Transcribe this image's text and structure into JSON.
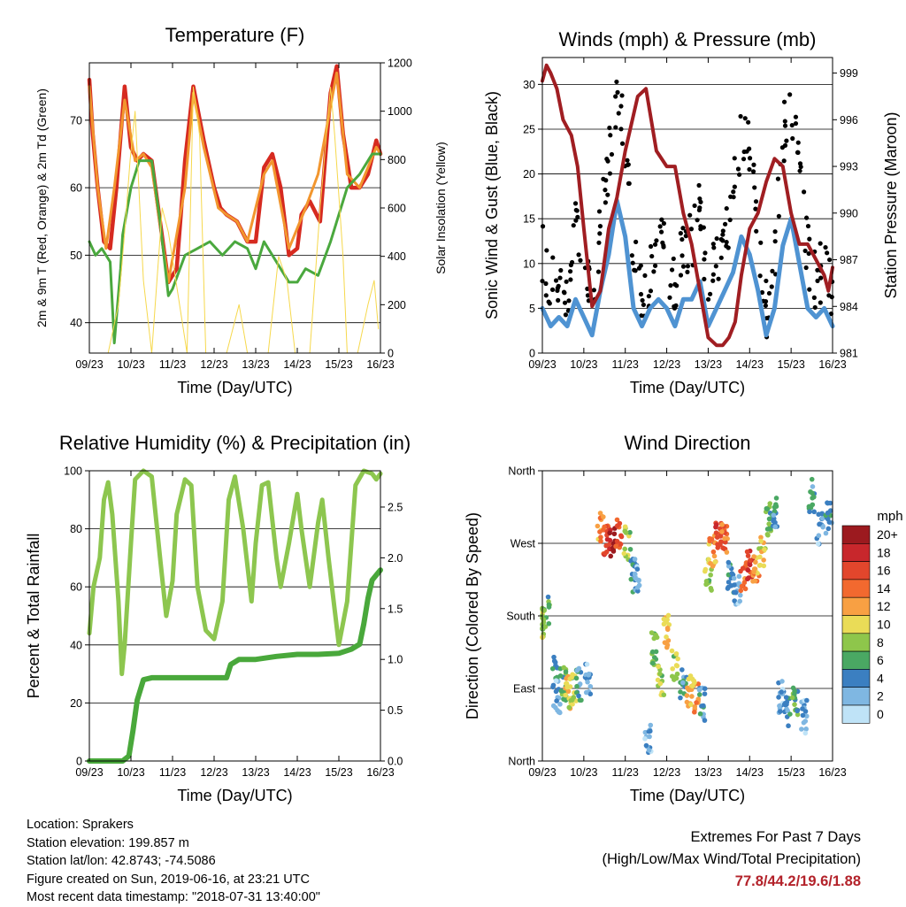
{
  "info": {
    "location": "Location: Sprakers",
    "elevation": "Station elevation: 199.857 m",
    "latlon": "Station lat/lon: 42.8743; -74.5086",
    "created": "Figure created on Sun, 2019-06-16, at 23:21 UTC",
    "recent": "Most recent data timestamp: \"2018-07-31 13:40:00\""
  },
  "extremes": {
    "title": "Extremes For Past 7 Days",
    "subtitle": "(High/Low/Max Wind/Total Precipitation)",
    "values": "77.8/44.2/19.6/1.88",
    "color": "#b3222a"
  },
  "chart_data": [
    {
      "type": "line",
      "title": "Temperature (F)",
      "xlabel": "Time (Day/UTC)",
      "ylabel": "2m & 9m T (Red, Orange) & 2m Td (Green)",
      "y2label": "Solar Insolation (Yellow)",
      "x_ticks": [
        "09/23",
        "10/23",
        "11/23",
        "12/23",
        "13/23",
        "14/23",
        "15/23",
        "16/23"
      ],
      "ylim": [
        35.5,
        78.5
      ],
      "y_ticks": [
        "40",
        "50",
        "60",
        "70"
      ],
      "y_tick_values": [
        40,
        50,
        60,
        70
      ],
      "y2lim": [
        0,
        1200
      ],
      "y2_ticks": [
        "0",
        "200",
        "400",
        "600",
        "800",
        "1000",
        "1200"
      ],
      "y2_tick_values": [
        0,
        200,
        400,
        600,
        800,
        1000,
        1200
      ],
      "grid": "horizontal at left-axis ticks",
      "series": [
        {
          "color": "#d62a20",
          "axis": "left",
          "x": [
            0,
            0.08,
            0.2,
            0.35,
            0.5,
            0.65,
            0.85,
            1.0,
            1.15,
            1.3,
            1.5,
            1.7,
            1.9,
            2.1,
            2.3,
            2.5,
            2.75,
            3.0,
            3.15,
            3.3,
            3.55,
            3.8,
            4.0,
            4.2,
            4.4,
            4.6,
            4.8,
            5.0,
            5.1,
            5.3,
            5.55,
            5.8,
            5.95,
            6.1,
            6.3,
            6.5,
            6.7,
            6.9,
            7.0
          ],
          "y": [
            76,
            68,
            60,
            52,
            51,
            60,
            75,
            66,
            64,
            65,
            64,
            55,
            46,
            48,
            64,
            75,
            67,
            60,
            57,
            56,
            55,
            52,
            52,
            63,
            65,
            60,
            50,
            51,
            56,
            58,
            55,
            74,
            78,
            68,
            60,
            60,
            62,
            67,
            65
          ]
        },
        {
          "color": "#f2962e",
          "axis": "left",
          "x": [
            0,
            0.2,
            0.4,
            0.6,
            0.85,
            1.1,
            1.3,
            1.5,
            1.9,
            2.3,
            2.5,
            2.75,
            3.1,
            3.3,
            3.55,
            3.8,
            4.2,
            4.4,
            4.8,
            5.2,
            5.5,
            5.95,
            6.2,
            6.5,
            6.9,
            7.0
          ],
          "y": [
            75,
            60,
            51,
            60,
            73,
            64,
            65,
            63,
            46,
            60,
            74,
            66,
            57,
            56,
            55,
            52,
            62,
            64,
            51,
            57,
            62,
            77,
            62,
            60,
            66,
            65
          ]
        },
        {
          "color": "#4aa83e",
          "axis": "left",
          "x": [
            0,
            0.15,
            0.3,
            0.5,
            0.6,
            0.75,
            0.8,
            1.0,
            1.2,
            1.5,
            1.7,
            1.9,
            2.0,
            2.3,
            2.6,
            2.9,
            3.2,
            3.5,
            3.8,
            4.0,
            4.2,
            4.4,
            4.6,
            4.8,
            5.0,
            5.2,
            5.5,
            5.8,
            6.0,
            6.2,
            6.5,
            6.8,
            7.0
          ],
          "y": [
            52,
            50,
            51,
            49,
            37,
            48,
            53,
            60,
            64,
            64,
            55,
            44,
            45,
            50,
            51,
            52,
            50,
            52,
            51,
            48,
            52,
            50,
            48,
            46,
            46,
            48,
            47,
            52,
            56,
            60,
            62,
            65,
            65
          ]
        },
        {
          "color": "#f6d84c",
          "axis": "right",
          "x": [
            0.45,
            0.7,
            0.85,
            0.98,
            1.1,
            1.3,
            1.5,
            1.75,
            1.9,
            2.35,
            2.5,
            2.65,
            2.8,
            3.3,
            3.6,
            3.8,
            4.3,
            4.55,
            4.75,
            4.95,
            5.3,
            5.55,
            5.8,
            5.9,
            6.1,
            6.2,
            6.45,
            6.7,
            6.85,
            6.95
          ],
          "y": [
            0,
            200,
            500,
            800,
            1000,
            300,
            0,
            600,
            500,
            0,
            1100,
            900,
            0,
            0,
            200,
            0,
            0,
            400,
            300,
            0,
            0,
            600,
            1100,
            900,
            400,
            0,
            0,
            200,
            300,
            100
          ]
        }
      ]
    },
    {
      "type": "line",
      "title": "Winds (mph) & Pressure (mb)",
      "xlabel": "Time (Day/UTC)",
      "ylabel": "Sonic Wind & Gust (Blue, Black)",
      "y2label": "Station Pressure (Maroon)",
      "x_ticks": [
        "09/23",
        "10/23",
        "11/23",
        "12/23",
        "13/23",
        "14/23",
        "15/23",
        "16/23"
      ],
      "ylim": [
        0,
        33
      ],
      "y_ticks": [
        "0",
        "5",
        "10",
        "15",
        "20",
        "25",
        "30"
      ],
      "y_tick_values": [
        0,
        5,
        10,
        15,
        20,
        25,
        30
      ],
      "y2lim": [
        981,
        1000
      ],
      "y2_ticks": [
        "981",
        "984",
        "987",
        "990",
        "993",
        "996",
        "999"
      ],
      "y2_tick_values": [
        981,
        984,
        987,
        990,
        993,
        996,
        999
      ],
      "grid": "horizontal at left-axis ticks",
      "series": [
        {
          "color": "#000000",
          "axis": "left",
          "x": [
            0,
            0.2,
            0.4,
            0.6,
            0.8,
            1.0,
            1.2,
            1.4,
            1.6,
            1.8,
            2.0,
            2.2,
            2.4,
            2.6,
            2.8,
            3.0,
            3.2,
            3.4,
            3.6,
            3.8,
            4.0,
            4.2,
            4.4,
            4.6,
            4.8,
            5.0,
            5.2,
            5.4,
            5.6,
            5.8,
            6.0,
            6.2,
            6.4,
            6.6,
            6.8,
            7.0
          ],
          "y": [
            11,
            8,
            9,
            6,
            14,
            10,
            5,
            14,
            22,
            30,
            24,
            11,
            6,
            9,
            12,
            11,
            7,
            13,
            12,
            16,
            7,
            10,
            13,
            18,
            25,
            22,
            14,
            5,
            10,
            24,
            28,
            20,
            11,
            8,
            10,
            6
          ]
        },
        {
          "color": "#4f93d2",
          "axis": "left",
          "x": [
            0,
            0.2,
            0.4,
            0.6,
            0.8,
            1.0,
            1.2,
            1.4,
            1.6,
            1.8,
            2.0,
            2.2,
            2.4,
            2.6,
            2.8,
            3.0,
            3.2,
            3.4,
            3.6,
            3.8,
            4.0,
            4.2,
            4.4,
            4.6,
            4.8,
            5.0,
            5.2,
            5.4,
            5.6,
            5.8,
            6.0,
            6.2,
            6.4,
            6.6,
            6.8,
            7.0
          ],
          "y": [
            5,
            3,
            4,
            3,
            6,
            4,
            2,
            7,
            11,
            17,
            13,
            5,
            3,
            5,
            6,
            5,
            3,
            6,
            6,
            8,
            3,
            5,
            7,
            9,
            13,
            11,
            7,
            2,
            5,
            12,
            15,
            10,
            5,
            4,
            5,
            3
          ]
        },
        {
          "color": "#a01e22",
          "axis": "right",
          "x": [
            0,
            0.1,
            0.2,
            0.35,
            0.5,
            0.7,
            0.85,
            1.0,
            1.2,
            1.4,
            1.6,
            1.8,
            2.0,
            2.3,
            2.5,
            2.75,
            3.0,
            3.2,
            3.4,
            3.6,
            3.8,
            4.0,
            4.2,
            4.35,
            4.5,
            4.65,
            4.8,
            5.0,
            5.2,
            5.4,
            5.6,
            5.8,
            6.0,
            6.2,
            6.4,
            6.6,
            6.8,
            6.9,
            7.0
          ],
          "y": [
            998.5,
            999.5,
            999,
            998,
            996,
            995,
            993,
            989,
            984,
            985,
            989,
            991,
            994,
            997.5,
            998,
            994,
            993,
            993,
            990,
            988,
            985,
            982,
            981.5,
            981.5,
            982,
            983,
            986,
            989,
            990,
            992,
            993.5,
            993,
            990,
            988,
            988,
            987,
            986,
            985,
            986.5
          ]
        }
      ]
    },
    {
      "type": "line",
      "title": "Relative Humidity (%) & Precipitation (in)",
      "xlabel": "Time (Day/UTC)",
      "ylabel": "Percent & Total Rainfall",
      "x_ticks": [
        "09/23",
        "10/23",
        "11/23",
        "12/23",
        "13/23",
        "14/23",
        "15/23",
        "16/23"
      ],
      "ylim": [
        0,
        100
      ],
      "y_ticks": [
        "0",
        "20",
        "40",
        "60",
        "80",
        "100"
      ],
      "y_tick_values": [
        0,
        20,
        40,
        60,
        80,
        100
      ],
      "y2lim": [
        0,
        2.857
      ],
      "y2_ticks": [
        "0.0",
        "0.5",
        "1.0",
        "1.5",
        "2.0",
        "2.5"
      ],
      "y2_tick_values": [
        0,
        0.5,
        1.0,
        1.5,
        2.0,
        2.5
      ],
      "grid": "horizontal at left-axis ticks",
      "series": [
        {
          "color": "#8dc64f",
          "axis": "left",
          "x": [
            0,
            0.1,
            0.25,
            0.35,
            0.45,
            0.55,
            0.7,
            0.78,
            0.85,
            1.0,
            1.1,
            1.3,
            1.5,
            1.7,
            1.85,
            2.0,
            2.1,
            2.3,
            2.45,
            2.6,
            2.8,
            3.0,
            3.2,
            3.35,
            3.5,
            3.7,
            3.9,
            4.0,
            4.15,
            4.3,
            4.5,
            4.6,
            4.8,
            5.0,
            5.1,
            5.3,
            5.5,
            5.6,
            5.75,
            5.9,
            6.0,
            6.2,
            6.4,
            6.6,
            6.8,
            6.9,
            7.0
          ],
          "y": [
            44,
            60,
            70,
            90,
            96,
            85,
            55,
            30,
            40,
            75,
            97,
            100,
            98,
            70,
            50,
            62,
            85,
            97,
            95,
            60,
            45,
            42,
            55,
            90,
            98,
            80,
            55,
            75,
            95,
            96,
            70,
            60,
            75,
            92,
            80,
            60,
            82,
            90,
            70,
            52,
            40,
            55,
            95,
            100,
            99,
            97,
            99
          ]
        },
        {
          "color": "#49a83b",
          "axis": "right",
          "x": [
            0,
            0.5,
            0.8,
            0.95,
            1.05,
            1.15,
            1.3,
            1.5,
            2.0,
            2.5,
            3.0,
            3.3,
            3.4,
            3.6,
            4.0,
            4.5,
            5.0,
            5.5,
            6.0,
            6.3,
            6.5,
            6.6,
            6.7,
            6.8,
            6.9,
            7.0
          ],
          "y": [
            0,
            0,
            0,
            0.05,
            0.3,
            0.6,
            0.8,
            0.82,
            0.82,
            0.82,
            0.82,
            0.82,
            0.95,
            1.0,
            1.0,
            1.03,
            1.05,
            1.05,
            1.06,
            1.1,
            1.15,
            1.35,
            1.6,
            1.78,
            1.83,
            1.88
          ]
        }
      ]
    },
    {
      "type": "scatter",
      "title": "Wind Direction",
      "xlabel": "Time (Day/UTC)",
      "ylabel": "Direction (Colored By Speed)",
      "x_ticks": [
        "09/23",
        "10/23",
        "11/23",
        "12/23",
        "13/23",
        "14/23",
        "15/23",
        "16/23"
      ],
      "ylim": [
        0,
        360
      ],
      "y_ticks": [
        "North",
        "East",
        "South",
        "West",
        "North"
      ],
      "y_tick_values": [
        0,
        90,
        180,
        270,
        360
      ],
      "grid": "horizontal at direction ticks",
      "legend": {
        "title": "mph",
        "labels": [
          "20+",
          "18",
          "16",
          "14",
          "12",
          "10",
          "8",
          "6",
          "4",
          "2",
          "0"
        ],
        "colors": [
          "#9c1a1f",
          "#c8272c",
          "#e2462c",
          "#f2692f",
          "#f8a043",
          "#eadc57",
          "#8ec64b",
          "#4aa863",
          "#3b7fc1",
          "#7fb7e2",
          "#bfe3f7"
        ],
        "placement": "right"
      },
      "clusters": [
        {
          "x": 0.0,
          "dir": 170,
          "speed": 8
        },
        {
          "x": 0.1,
          "dir": 185,
          "speed": 6
        },
        {
          "x": 0.3,
          "dir": 110,
          "speed": 4
        },
        {
          "x": 0.35,
          "dir": 80,
          "speed": 2
        },
        {
          "x": 0.5,
          "dir": 95,
          "speed": 6
        },
        {
          "x": 0.6,
          "dir": 85,
          "speed": 10
        },
        {
          "x": 0.75,
          "dir": 90,
          "speed": 8
        },
        {
          "x": 0.9,
          "dir": 95,
          "speed": 4
        },
        {
          "x": 1.1,
          "dir": 100,
          "speed": 2
        },
        {
          "x": 1.4,
          "dir": 290,
          "speed": 12
        },
        {
          "x": 1.55,
          "dir": 275,
          "speed": 16
        },
        {
          "x": 1.7,
          "dir": 270,
          "speed": 20
        },
        {
          "x": 1.85,
          "dir": 285,
          "speed": 14
        },
        {
          "x": 2.05,
          "dir": 270,
          "speed": 8
        },
        {
          "x": 2.2,
          "dir": 230,
          "speed": 4
        },
        {
          "x": 2.3,
          "dir": 230,
          "speed": 2
        },
        {
          "x": 2.55,
          "dir": 30,
          "speed": 2
        },
        {
          "x": 2.7,
          "dir": 140,
          "speed": 6
        },
        {
          "x": 2.85,
          "dir": 100,
          "speed": 8
        },
        {
          "x": 3.0,
          "dir": 160,
          "speed": 10
        },
        {
          "x": 3.2,
          "dir": 120,
          "speed": 8
        },
        {
          "x": 3.4,
          "dir": 95,
          "speed": 4
        },
        {
          "x": 3.55,
          "dir": 85,
          "speed": 10
        },
        {
          "x": 3.7,
          "dir": 80,
          "speed": 12
        },
        {
          "x": 3.85,
          "dir": 70,
          "speed": 4
        },
        {
          "x": 4.0,
          "dir": 230,
          "speed": 8
        },
        {
          "x": 4.1,
          "dir": 260,
          "speed": 12
        },
        {
          "x": 4.25,
          "dir": 280,
          "speed": 16
        },
        {
          "x": 4.4,
          "dir": 275,
          "speed": 14
        },
        {
          "x": 4.55,
          "dir": 230,
          "speed": 4
        },
        {
          "x": 4.7,
          "dir": 210,
          "speed": 2
        },
        {
          "x": 4.85,
          "dir": 225,
          "speed": 14
        },
        {
          "x": 5.0,
          "dir": 245,
          "speed": 16
        },
        {
          "x": 5.15,
          "dir": 240,
          "speed": 12
        },
        {
          "x": 5.3,
          "dir": 260,
          "speed": 10
        },
        {
          "x": 5.45,
          "dir": 300,
          "speed": 6
        },
        {
          "x": 5.6,
          "dir": 310,
          "speed": 4
        },
        {
          "x": 5.75,
          "dir": 80,
          "speed": 2
        },
        {
          "x": 5.9,
          "dir": 60,
          "speed": 4
        },
        {
          "x": 6.1,
          "dir": 75,
          "speed": 6
        },
        {
          "x": 6.3,
          "dir": 55,
          "speed": 2
        },
        {
          "x": 6.5,
          "dir": 330,
          "speed": 4
        },
        {
          "x": 6.7,
          "dir": 290,
          "speed": 2
        },
        {
          "x": 6.9,
          "dir": 300,
          "speed": 4
        }
      ]
    }
  ]
}
